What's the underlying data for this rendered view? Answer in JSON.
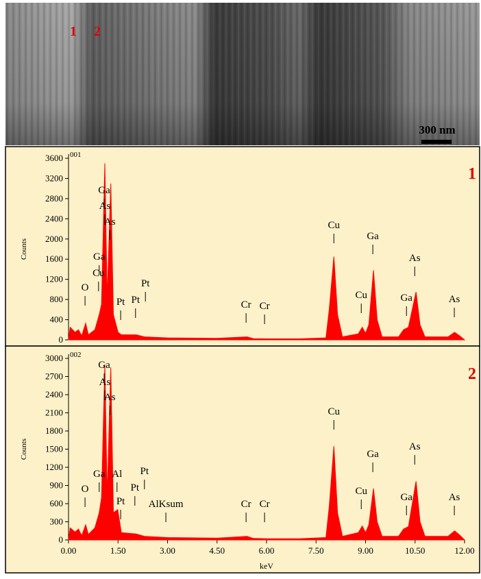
{
  "image": {
    "labels": [
      "1",
      "2"
    ],
    "scale_bar": "300 nm"
  },
  "chart_data": [
    {
      "type": "area",
      "label": "001",
      "panel_label": "1",
      "ylabel": "Counts",
      "color": "#ff0000",
      "x": [
        0,
        0.05,
        0.2,
        0.3,
        0.4,
        0.52,
        0.6,
        0.8,
        0.93,
        1.0,
        1.1,
        1.17,
        1.28,
        1.36,
        1.5,
        1.6,
        2.05,
        2.3,
        3.0,
        4.5,
        5.41,
        5.6,
        6.0,
        7.0,
        7.8,
        7.9,
        8.04,
        8.15,
        8.3,
        8.78,
        8.9,
        9.0,
        9.1,
        9.24,
        9.35,
        9.5,
        10.0,
        10.15,
        10.3,
        10.53,
        10.65,
        10.8,
        11.5,
        11.7,
        11.85,
        12.0
      ],
      "values": [
        0,
        250,
        150,
        200,
        80,
        330,
        100,
        200,
        500,
        700,
        3500,
        800,
        3100,
        500,
        150,
        100,
        100,
        60,
        40,
        30,
        60,
        25,
        20,
        20,
        40,
        600,
        1650,
        500,
        60,
        120,
        250,
        130,
        300,
        1380,
        400,
        60,
        60,
        200,
        250,
        950,
        300,
        60,
        60,
        150,
        80,
        0
      ],
      "xlim": [
        0,
        12
      ],
      "ylim": [
        0,
        3600
      ],
      "yticks": [
        0,
        400,
        800,
        1200,
        1600,
        2000,
        2400,
        2800,
        3200,
        3600
      ],
      "peak_labels": [
        {
          "label": "Ga",
          "x": 1.08,
          "y": 2907
        },
        {
          "label": "As",
          "x": 1.1,
          "y": 2595
        },
        {
          "label": "As",
          "x": 1.25,
          "y": 2282
        },
        {
          "label": "Ga",
          "x": 0.93,
          "y": 1590
        },
        {
          "label": "Cu",
          "x": 0.91,
          "y": 1263
        },
        {
          "label": "O",
          "x": 0.5,
          "y": 978
        },
        {
          "label": "Pt",
          "x": 2.33,
          "y": 1060
        },
        {
          "label": "Pt",
          "x": 1.58,
          "y": 693
        },
        {
          "label": "Pt",
          "x": 2.03,
          "y": 734
        },
        {
          "label": "Cr",
          "x": 5.38,
          "y": 638
        },
        {
          "label": "Cr",
          "x": 5.94,
          "y": 611
        },
        {
          "label": "Cu",
          "x": 8.04,
          "y": 2214
        },
        {
          "label": "Ga",
          "x": 9.22,
          "y": 1997
        },
        {
          "label": "As",
          "x": 10.49,
          "y": 1562
        },
        {
          "label": "Cu",
          "x": 8.87,
          "y": 829
        },
        {
          "label": "Ga",
          "x": 10.24,
          "y": 774
        },
        {
          "label": "As",
          "x": 11.69,
          "y": 747
        }
      ]
    },
    {
      "type": "area",
      "label": "002",
      "panel_label": "2",
      "ylabel": "Counts",
      "xlabel": "keV",
      "color": "#ff0000",
      "x": [
        0,
        0.05,
        0.2,
        0.3,
        0.4,
        0.52,
        0.6,
        0.8,
        0.93,
        1.0,
        1.1,
        1.17,
        1.28,
        1.36,
        1.49,
        1.6,
        2.05,
        2.3,
        3.0,
        4.5,
        5.41,
        5.6,
        6.0,
        7.0,
        7.8,
        7.9,
        8.04,
        8.15,
        8.3,
        8.78,
        8.9,
        9.0,
        9.1,
        9.24,
        9.35,
        9.5,
        10.0,
        10.15,
        10.3,
        10.53,
        10.65,
        10.8,
        11.5,
        11.7,
        11.85,
        12.0
      ],
      "values": [
        0,
        200,
        130,
        180,
        70,
        250,
        90,
        200,
        450,
        700,
        2900,
        700,
        2850,
        450,
        500,
        120,
        100,
        60,
        40,
        30,
        60,
        25,
        20,
        20,
        40,
        550,
        1550,
        450,
        60,
        120,
        230,
        120,
        250,
        850,
        300,
        60,
        60,
        180,
        220,
        970,
        300,
        60,
        60,
        150,
        80,
        0
      ],
      "xlim": [
        0,
        12
      ],
      "ylim": [
        0,
        3000
      ],
      "yticks": [
        0,
        300,
        600,
        900,
        1200,
        1500,
        1800,
        2100,
        2400,
        2700,
        3000
      ],
      "xticks": [
        {
          "value": 0,
          "label": "0.00"
        },
        {
          "value": 1.5,
          "label": "1.50"
        },
        {
          "value": 3,
          "label": "3.00"
        },
        {
          "value": 4.5,
          "label": "4.50"
        },
        {
          "value": 6,
          "label": "6.00"
        },
        {
          "value": 7.5,
          "label": "7.50"
        },
        {
          "value": 9,
          "label": "9.00"
        },
        {
          "value": 10.5,
          "label": "10.50"
        },
        {
          "value": 12,
          "label": "12.00"
        }
      ],
      "peak_labels": [
        {
          "label": "Ga",
          "x": 1.08,
          "y": 2841
        },
        {
          "label": "As",
          "x": 1.1,
          "y": 2558
        },
        {
          "label": "As",
          "x": 1.25,
          "y": 2309
        },
        {
          "label": "Ga",
          "x": 0.93,
          "y": 1042
        },
        {
          "label": "Al",
          "x": 1.47,
          "y": 1042
        },
        {
          "label": "O",
          "x": 0.5,
          "y": 792
        },
        {
          "label": "Pt",
          "x": 2.3,
          "y": 1087
        },
        {
          "label": "Pt",
          "x": 2.01,
          "y": 815
        },
        {
          "label": "Pt",
          "x": 1.58,
          "y": 589
        },
        {
          "label": "AlKsum",
          "x": 2.95,
          "y": 543
        },
        {
          "label": "Cr",
          "x": 5.38,
          "y": 543
        },
        {
          "label": "Cr",
          "x": 5.94,
          "y": 543
        },
        {
          "label": "Cu",
          "x": 8.04,
          "y": 2072
        },
        {
          "label": "Ga",
          "x": 9.22,
          "y": 1370
        },
        {
          "label": "As",
          "x": 10.49,
          "y": 1494
        },
        {
          "label": "Cu",
          "x": 8.87,
          "y": 758
        },
        {
          "label": "Ga",
          "x": 10.24,
          "y": 657
        },
        {
          "label": "As",
          "x": 11.69,
          "y": 657
        }
      ]
    }
  ]
}
